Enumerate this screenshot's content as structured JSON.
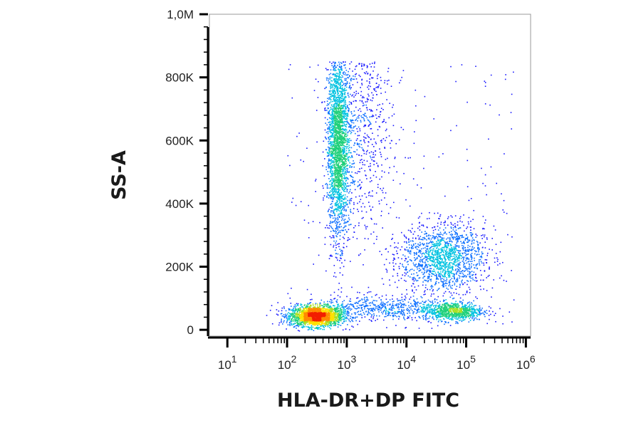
{
  "chart_data": {
    "type": "scatter",
    "subtype": "flow-cytometry-density-dot-plot",
    "xlabel": "HLA-DR+DP FITC",
    "ylabel": "SS-A",
    "x_scale": "log",
    "xlim": [
      5,
      1200000
    ],
    "ylim": [
      -20000,
      1000000
    ],
    "x_ticks": [
      {
        "value": 10,
        "base": "10",
        "exp": "1"
      },
      {
        "value": 100,
        "base": "10",
        "exp": "2"
      },
      {
        "value": 1000,
        "base": "10",
        "exp": "3"
      },
      {
        "value": 10000,
        "base": "10",
        "exp": "4"
      },
      {
        "value": 100000,
        "base": "10",
        "exp": "5"
      },
      {
        "value": 1000000,
        "base": "10",
        "exp": "6"
      }
    ],
    "y_ticks": [
      {
        "value": 0,
        "label": "0"
      },
      {
        "value": 200000,
        "label": "200K"
      },
      {
        "value": 400000,
        "label": "400K"
      },
      {
        "value": 600000,
        "label": "600K"
      },
      {
        "value": 800000,
        "label": "800K"
      },
      {
        "value": 1000000,
        "label": "1,0M"
      }
    ],
    "populations": [
      {
        "x_center": 300,
        "y_center": 45000,
        "x_spread_decades": 0.22,
        "y_spread": 16000,
        "count": 2200
      },
      {
        "x_center": 700,
        "y_center": 590000,
        "x_spread_decades": 0.09,
        "y_spread": 150000,
        "count": 2400
      },
      {
        "x_center": 1800,
        "y_center": 650000,
        "x_spread_decades": 0.25,
        "y_spread": 180000,
        "count": 700
      },
      {
        "x_center": 40000,
        "y_center": 230000,
        "x_spread_decades": 0.35,
        "y_spread": 55000,
        "count": 1500
      },
      {
        "x_center": 60000,
        "y_center": 60000,
        "x_spread_decades": 0.25,
        "y_spread": 15000,
        "count": 800
      },
      {
        "x_center": 4000,
        "y_center": 70000,
        "x_spread_decades": 0.6,
        "y_spread": 20000,
        "count": 600
      }
    ],
    "density_colors": [
      "#1a1aff",
      "#0d6fff",
      "#00c2e0",
      "#1fd07a",
      "#a8e020",
      "#ffe000",
      "#ff8a00",
      "#f21f00"
    ]
  }
}
